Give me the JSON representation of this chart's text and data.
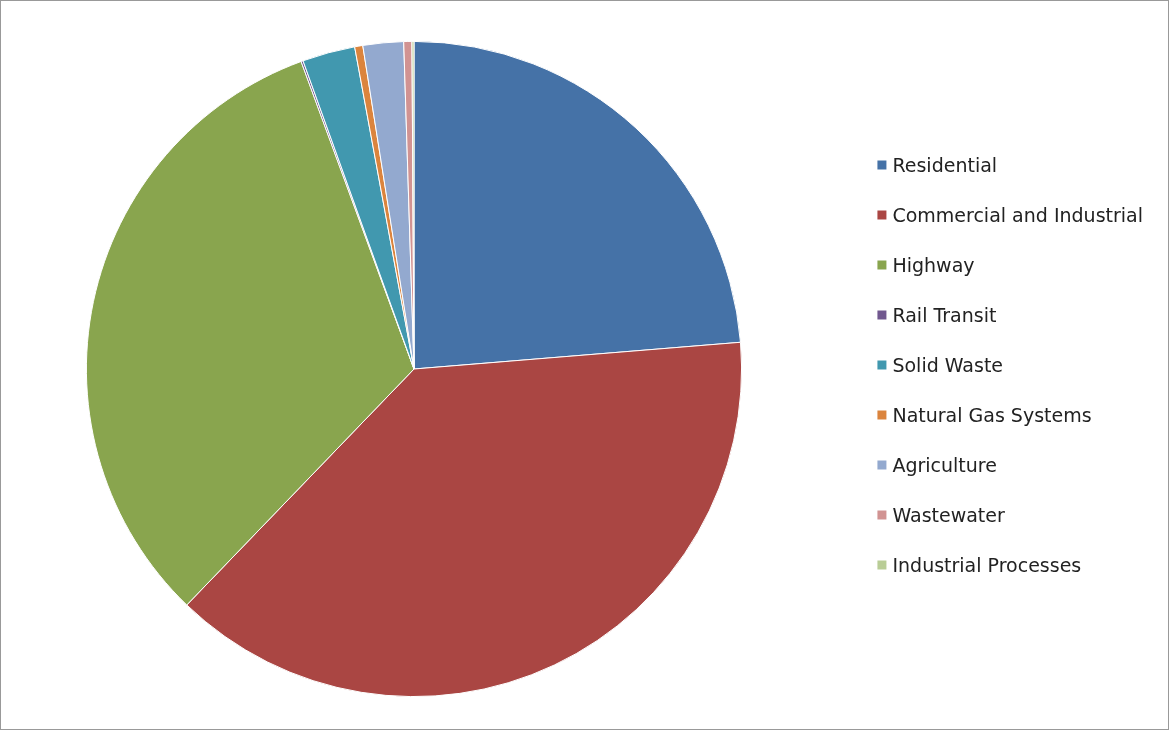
{
  "chart_data": {
    "type": "pie",
    "categories": [
      "Residential",
      "Commercial and Industrial",
      "Highway",
      "Rail Transit",
      "Solid Waste",
      "Natural Gas Systems",
      "Agriculture",
      "Wastewater",
      "Industrial Processes"
    ],
    "values": [
      23.7,
      38.5,
      32.2,
      0.1,
      2.6,
      0.4,
      2.0,
      0.4,
      0.1
    ],
    "colors": [
      "#4572a7",
      "#aa4643",
      "#89a54e",
      "#71588f",
      "#4198af",
      "#db843d",
      "#93a9cf",
      "#d19392",
      "#b9cd96"
    ],
    "legend": "right"
  }
}
